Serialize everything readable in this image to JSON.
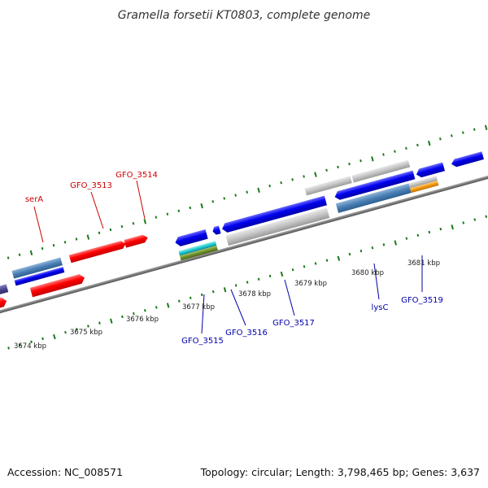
{
  "title": "Gramella forsetii KT0803, complete genome",
  "footer": {
    "accession": "Accession: NC_008571",
    "topology": "Topology: circular; Length: 3,798,465 bp; Genes: 3,637"
  },
  "colors": {
    "forward_cds": "#ff0000",
    "reverse_cds": "#0000ee",
    "backbone": "#808080",
    "ticks": "#1a7a1a",
    "label_forward": "#cc0000",
    "label_reverse": "#0000aa"
  },
  "scale_labels": [
    "3674 kbp",
    "3675 kbp",
    "3676 kbp",
    "3677 kbp",
    "3678 kbp",
    "3679 kbp",
    "3680 kbp",
    "3681 kbp"
  ],
  "gene_labels": {
    "forward": [
      "serA",
      "GFO_3513",
      "GFO_3514"
    ],
    "reverse": [
      "GFO_3515",
      "GFO_3516",
      "GFO_3517",
      "lysC",
      "GFO_3519"
    ]
  }
}
